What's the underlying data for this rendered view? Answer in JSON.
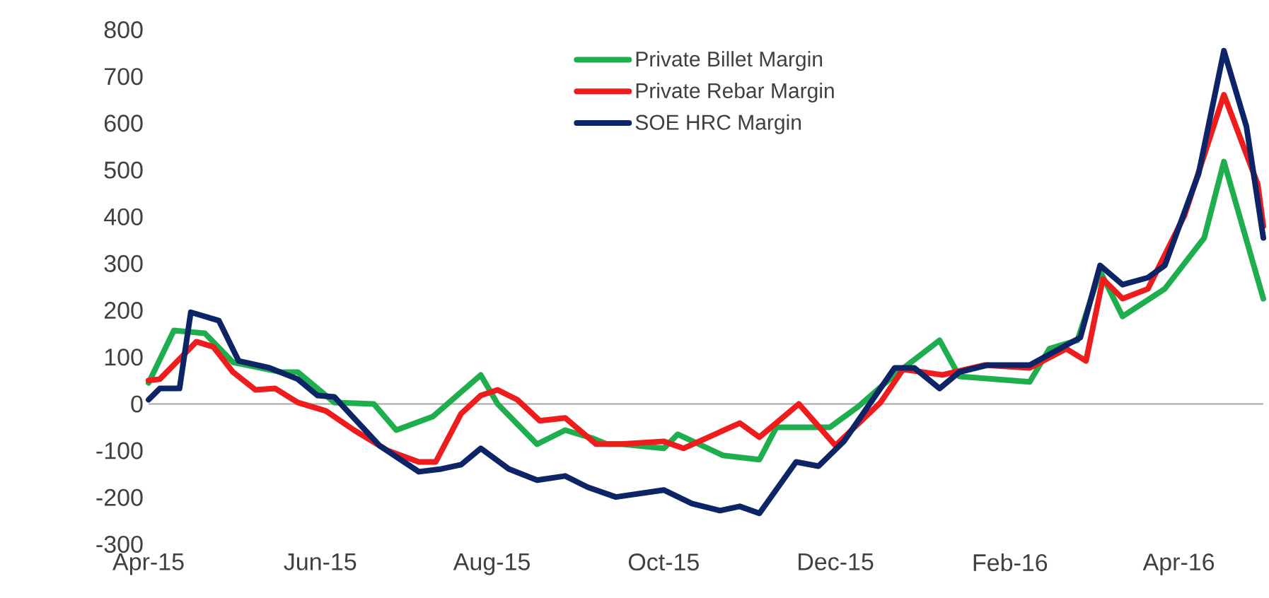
{
  "chart_data": {
    "type": "line",
    "xlim": [
      "2015-04-01",
      "2016-05-01"
    ],
    "xticks": [
      {
        "value": "2015-04-01",
        "label": "Apr-15"
      },
      {
        "value": "2015-06-01",
        "label": "Jun-15"
      },
      {
        "value": "2015-08-01",
        "label": "Aug-15"
      },
      {
        "value": "2015-10-01",
        "label": "Oct-15"
      },
      {
        "value": "2015-12-01",
        "label": "Dec-15"
      },
      {
        "value": "2016-02-01",
        "label": "Feb-16"
      },
      {
        "value": "2016-04-01",
        "label": "Apr-16"
      }
    ],
    "ylim": [
      -300,
      800
    ],
    "yticks": [
      -300,
      -200,
      -100,
      0,
      100,
      200,
      300,
      400,
      500,
      600,
      700,
      800
    ],
    "legend": "top",
    "series": [
      {
        "name": "Private Billet Margin",
        "color": "#1fae4e",
        "x": [
          "2015-04-01",
          "2015-04-10",
          "2015-04-21",
          "2015-05-01",
          "2015-05-18",
          "2015-05-24",
          "2015-06-06",
          "2015-06-20",
          "2015-06-28",
          "2015-07-11",
          "2015-07-28",
          "2015-08-03",
          "2015-08-17",
          "2015-08-27",
          "2015-09-06",
          "2015-09-11",
          "2015-09-16",
          "2015-10-01",
          "2015-10-06",
          "2015-10-22",
          "2015-11-04",
          "2015-11-10",
          "2015-11-29",
          "2015-12-09",
          "2015-12-22",
          "2016-01-07",
          "2016-01-14",
          "2016-02-08",
          "2016-02-15",
          "2016-02-25",
          "2016-03-04",
          "2016-03-12",
          "2016-03-27",
          "2016-04-10",
          "2016-04-17",
          "2016-05-01"
        ],
        "values": [
          45,
          157,
          151,
          89,
          68,
          68,
          3,
          0,
          -56,
          -27,
          62,
          0,
          -86,
          -56,
          -74,
          -86,
          -86,
          -95,
          -65,
          -110,
          -119,
          -50,
          -50,
          -6,
          62,
          136,
          59,
          47,
          118,
          136,
          284,
          187,
          246,
          355,
          518,
          225
        ]
      },
      {
        "name": "Private Rebar Margin",
        "color": "#ee1c1c",
        "x": [
          "2015-04-01",
          "2015-04-05",
          "2015-04-18",
          "2015-04-24",
          "2015-05-01",
          "2015-05-09",
          "2015-05-16",
          "2015-05-24",
          "2015-06-03",
          "2015-06-13",
          "2015-06-25",
          "2015-07-06",
          "2015-07-12",
          "2015-07-21",
          "2015-07-28",
          "2015-08-03",
          "2015-08-10",
          "2015-08-18",
          "2015-08-27",
          "2015-09-07",
          "2015-09-16",
          "2015-10-01",
          "2015-10-08",
          "2015-10-28",
          "2015-11-04",
          "2015-11-18",
          "2015-12-01",
          "2015-12-17",
          "2015-12-25",
          "2016-01-08",
          "2016-01-23",
          "2016-02-08",
          "2016-02-21",
          "2016-02-28",
          "2016-03-05",
          "2016-03-12",
          "2016-03-21",
          "2016-04-03",
          "2016-04-17",
          "2016-04-29",
          "2016-05-01"
        ],
        "values": [
          50,
          53,
          133,
          122,
          68,
          30,
          33,
          3,
          -15,
          -56,
          -100,
          -124,
          -124,
          -21,
          18,
          30,
          9,
          -36,
          -30,
          -86,
          -86,
          -80,
          -95,
          -41,
          -71,
          0,
          -89,
          3,
          74,
          62,
          83,
          77,
          118,
          92,
          267,
          225,
          246,
          403,
          661,
          470,
          380
        ]
      },
      {
        "name": "SOE HRC Margin",
        "color": "#0d2466",
        "x": [
          "2015-04-01",
          "2015-04-05",
          "2015-04-12",
          "2015-04-16",
          "2015-04-26",
          "2015-05-03",
          "2015-05-14",
          "2015-05-24",
          "2015-05-31",
          "2015-06-06",
          "2015-06-22",
          "2015-07-06",
          "2015-07-14",
          "2015-07-21",
          "2015-07-28",
          "2015-08-07",
          "2015-08-17",
          "2015-08-27",
          "2015-09-04",
          "2015-09-14",
          "2015-10-01",
          "2015-10-11",
          "2015-10-21",
          "2015-10-28",
          "2015-11-04",
          "2015-11-17",
          "2015-11-25",
          "2015-12-04",
          "2015-12-22",
          "2015-12-29",
          "2016-01-07",
          "2016-01-14",
          "2016-01-24",
          "2016-02-08",
          "2016-02-26",
          "2016-03-04",
          "2016-03-12",
          "2016-03-21",
          "2016-03-27",
          "2016-04-08",
          "2016-04-17",
          "2016-04-25",
          "2016-05-01"
        ],
        "values": [
          9,
          33,
          33,
          196,
          178,
          92,
          77,
          53,
          18,
          15,
          -89,
          -145,
          -139,
          -130,
          -95,
          -139,
          -163,
          -154,
          -178,
          -199,
          -184,
          -213,
          -228,
          -219,
          -234,
          -124,
          -133,
          -80,
          77,
          77,
          33,
          68,
          83,
          83,
          142,
          296,
          255,
          270,
          296,
          492,
          755,
          593,
          355
        ]
      }
    ]
  }
}
